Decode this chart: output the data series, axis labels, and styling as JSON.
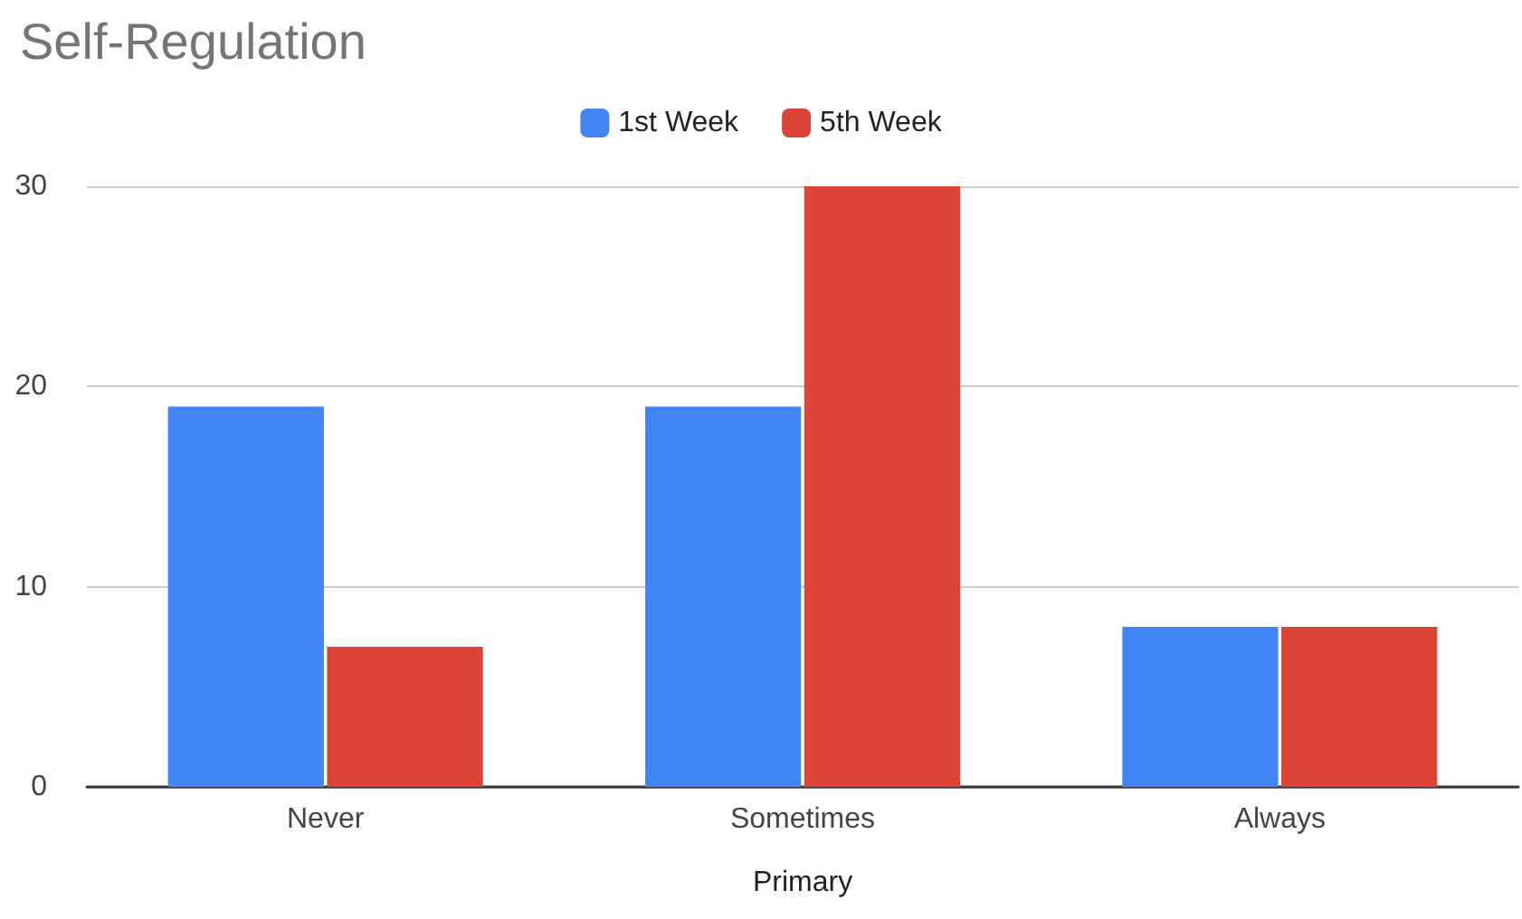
{
  "chart_data": {
    "type": "bar",
    "title": "Self-Regulation",
    "xlabel": "Primary",
    "categories": [
      "Never",
      "Sometimes",
      "Always"
    ],
    "series": [
      {
        "name": "1st Week",
        "color": "#4285f4",
        "values": [
          19,
          19,
          8
        ]
      },
      {
        "name": "5th Week",
        "color": "#db4437",
        "values": [
          7,
          30,
          8
        ]
      }
    ],
    "ylim": [
      0,
      30
    ],
    "yticks": [
      0,
      10,
      20,
      30
    ],
    "grid": "y",
    "legend": "top"
  }
}
